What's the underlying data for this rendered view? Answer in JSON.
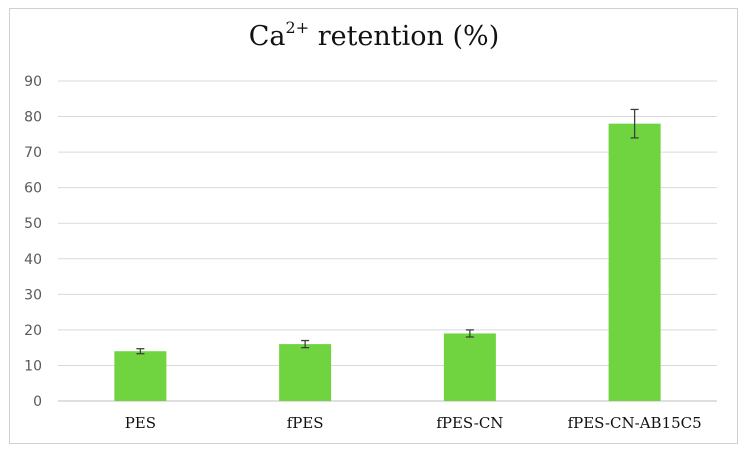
{
  "chart_data": {
    "type": "bar",
    "title_main": "Ca",
    "title_sup": "2+",
    "title_rest": " retention (%)",
    "categories": [
      "PES",
      "fPES",
      "fPES-CN",
      "fPES-CN-AB15C5"
    ],
    "series": [
      {
        "values": [
          14,
          16,
          19,
          78
        ],
        "errors": [
          0.7,
          1.0,
          1.0,
          4.0
        ],
        "color": "#6fd43f"
      }
    ],
    "ylim": [
      0,
      90
    ],
    "yticks": [
      0,
      10,
      20,
      30,
      40,
      50,
      60,
      70,
      80,
      90
    ],
    "grid": true,
    "legend": "none"
  }
}
